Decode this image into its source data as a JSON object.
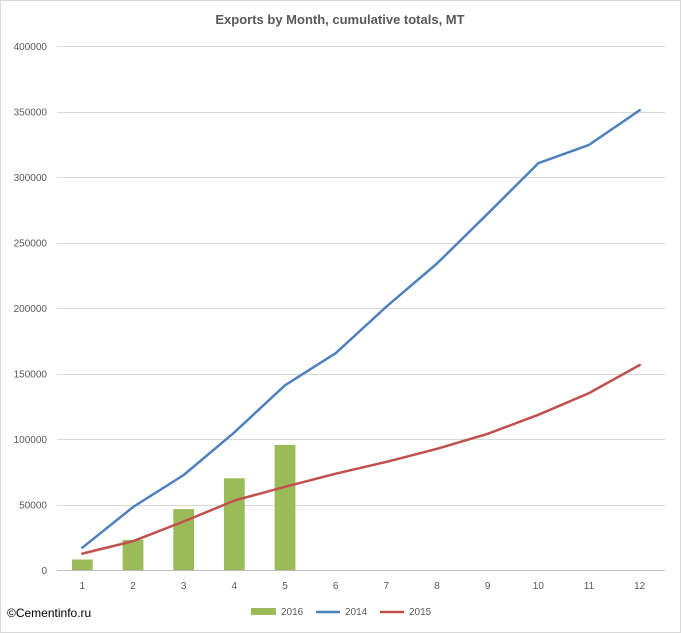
{
  "chart_data": {
    "type": "bar+line",
    "title": "Exports by Month, cumulative totals, MT",
    "categories": [
      "1",
      "2",
      "3",
      "4",
      "5",
      "6",
      "7",
      "8",
      "9",
      "10",
      "11",
      "12"
    ],
    "ylim": [
      0,
      400000
    ],
    "yticks": [
      0,
      50000,
      100000,
      150000,
      200000,
      250000,
      300000,
      350000,
      400000
    ],
    "ytick_labels": [
      "0",
      "50000",
      "100000",
      "150000",
      "200000",
      "250000",
      "300000",
      "350000",
      "400000"
    ],
    "grid": true,
    "legend_position": "bottom",
    "series": [
      {
        "name": "2016",
        "kind": "bar",
        "color": "#9bbb59",
        "values": [
          8000,
          23000,
          46500,
          70000,
          95500,
          null,
          null,
          null,
          null,
          null,
          null,
          null
        ]
      },
      {
        "name": "2014",
        "kind": "line",
        "color": "#4f81bd",
        "values": [
          17000,
          48000,
          72500,
          105000,
          141000,
          165500,
          201000,
          234000,
          272000,
          310500,
          324500,
          351000
        ]
      },
      {
        "name": "2015",
        "kind": "line",
        "color": "#c0504d",
        "values": [
          12500,
          22000,
          37000,
          53000,
          63500,
          73500,
          82500,
          92500,
          104000,
          118500,
          135000,
          156500
        ]
      }
    ]
  },
  "copyright": "©Cementinfo.ru"
}
